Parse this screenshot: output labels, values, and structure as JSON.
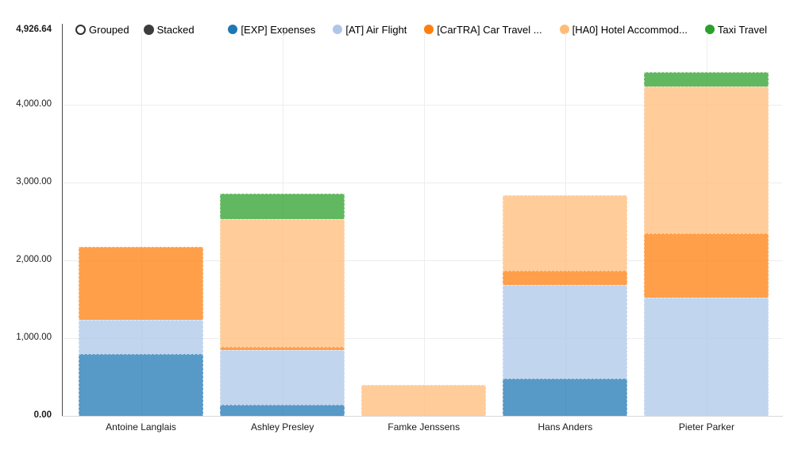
{
  "header": {
    "axis_max_label": "4,926.64",
    "controls": [
      {
        "label": "Grouped",
        "selected": false
      },
      {
        "label": "Stacked",
        "selected": true
      }
    ]
  },
  "legend": [
    {
      "label": "[EXP] Expenses",
      "color": "#1f77b4"
    },
    {
      "label": "[AT] Air Flight",
      "color": "#aec7e8"
    },
    {
      "label": "[CarTRA] Car Travel ...",
      "color": "#ff7f0e"
    },
    {
      "label": "[HA0] Hotel Accommod...",
      "color": "#ffbb78"
    },
    {
      "label": "Taxi Travel",
      "color": "#2ca02c"
    }
  ],
  "chart_data": {
    "type": "bar",
    "mode": "stacked",
    "categories": [
      "Antoine Langlais",
      "Ashley Presley",
      "Famke Jenssens",
      "Hans Anders",
      "Pieter Parker"
    ],
    "series": [
      {
        "name": "[EXP] Expenses",
        "color": "#1f77b4",
        "values": [
          795,
          145,
          0,
          480,
          0
        ]
      },
      {
        "name": "[AT] Air Flight",
        "color": "#aec7e8",
        "values": [
          440,
          700,
          0,
          1205,
          1520
        ]
      },
      {
        "name": "[CarTRA] Car Travel ...",
        "color": "#ff7f0e",
        "values": [
          940,
          40,
          0,
          185,
          825
        ]
      },
      {
        "name": "[HA0] Hotel Accommod...",
        "color": "#ffbb78",
        "values": [
          0,
          1640,
          395,
          965,
          1885
        ]
      },
      {
        "name": "Taxi Travel",
        "color": "#2ca02c",
        "values": [
          0,
          330,
          0,
          0,
          190
        ]
      }
    ],
    "totals": [
      2175,
      2855,
      395,
      2835,
      4420
    ],
    "ylim": [
      0,
      4926.64
    ],
    "yticks": [
      {
        "value": 0,
        "label": "0.00",
        "bold": true,
        "gridline": false
      },
      {
        "value": 1000,
        "label": "1,000.00",
        "bold": false,
        "gridline": true
      },
      {
        "value": 2000,
        "label": "2,000.00",
        "bold": false,
        "gridline": true
      },
      {
        "value": 3000,
        "label": "3,000.00",
        "bold": false,
        "gridline": true
      },
      {
        "value": 4000,
        "label": "4,000.00",
        "bold": false,
        "gridline": true
      },
      {
        "value": 4926.64,
        "label": "4,926.64",
        "bold": true,
        "gridline": false
      }
    ],
    "grid": true,
    "legend_position": "top-right",
    "bar_fill_opacity": 0.75
  }
}
